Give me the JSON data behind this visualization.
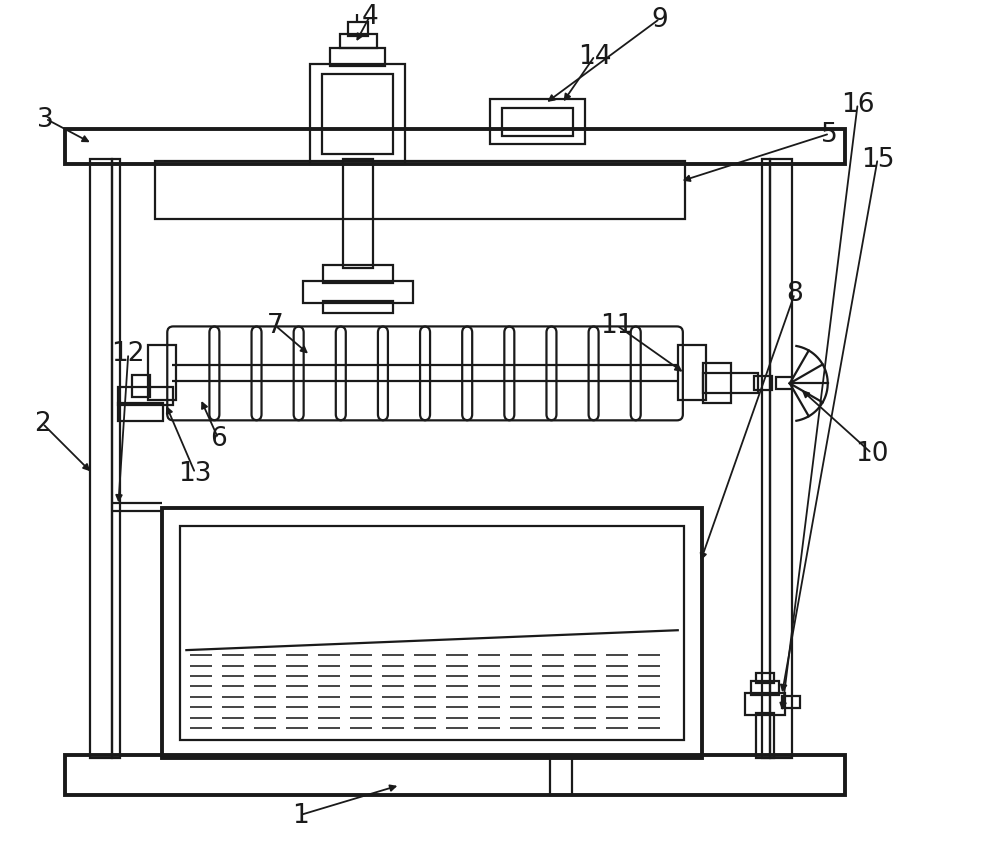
{
  "bg_color": "#ffffff",
  "lc": "#1a1a1a",
  "lw": 1.6,
  "tlw": 2.8,
  "figsize": [
    10.0,
    8.54
  ],
  "dpi": 100
}
